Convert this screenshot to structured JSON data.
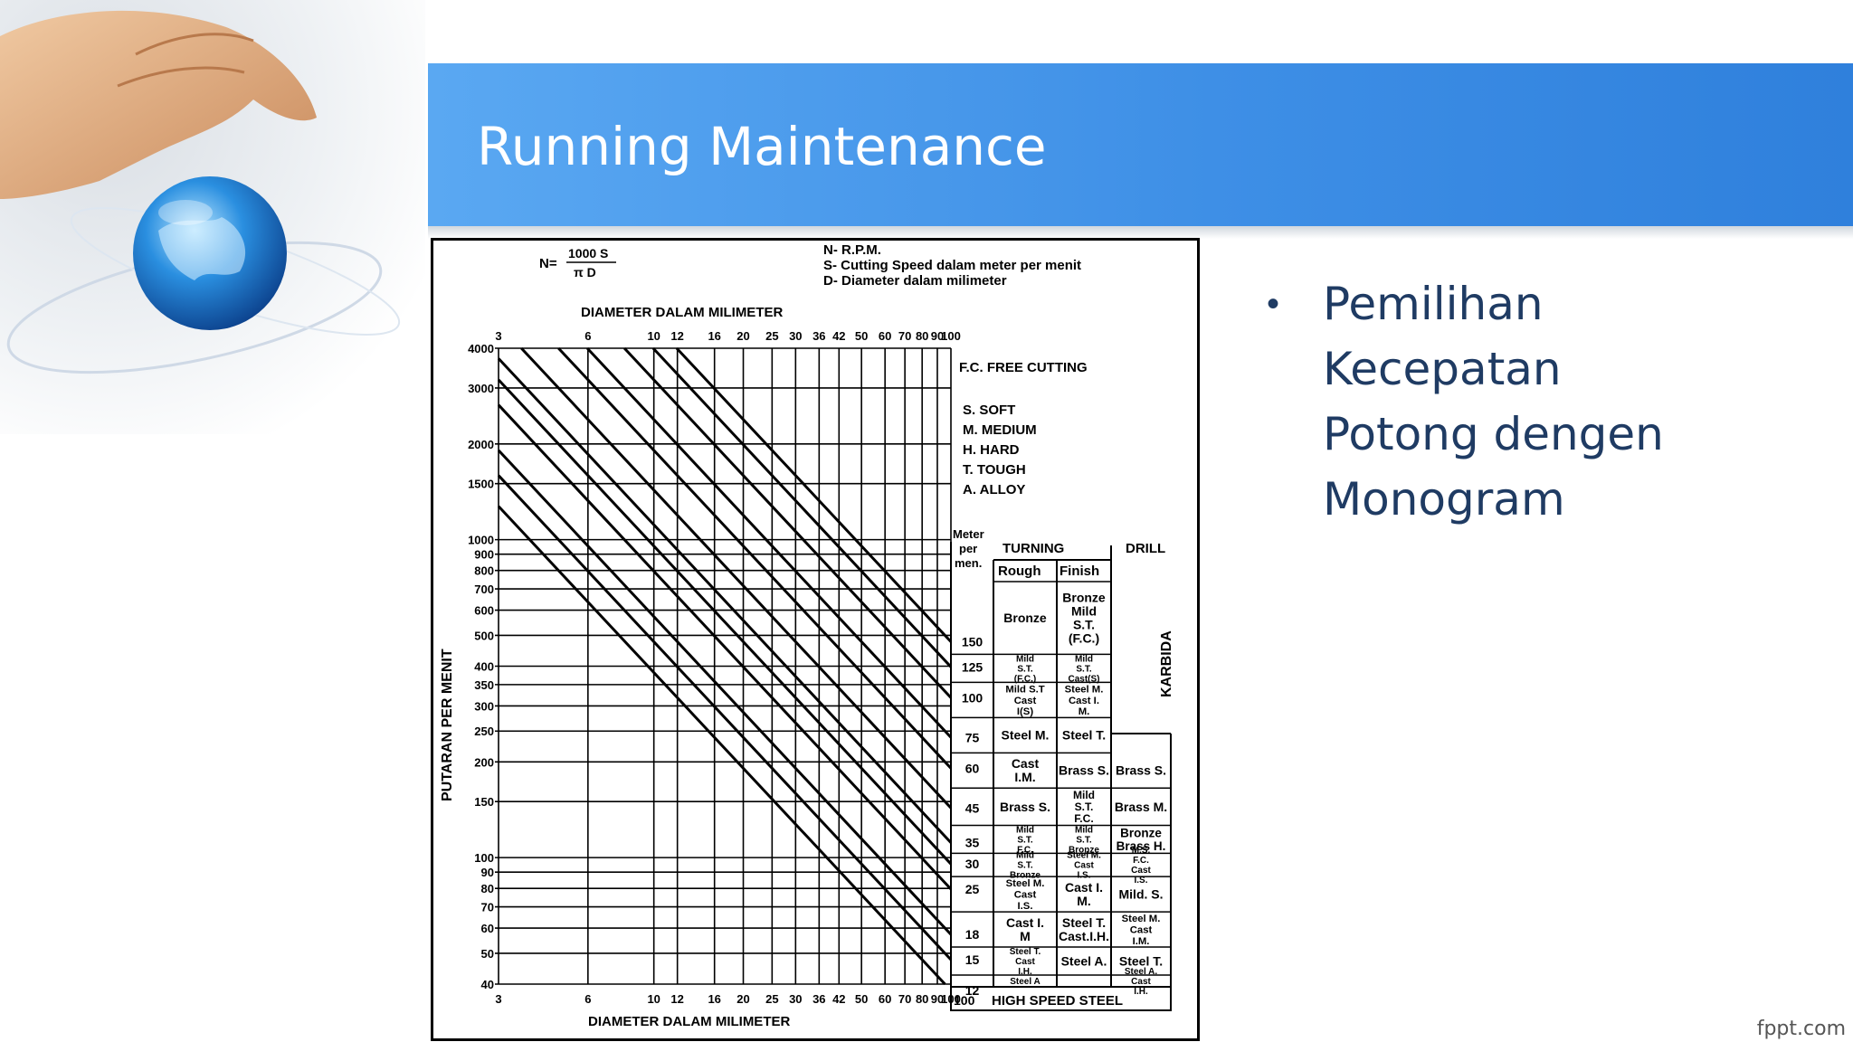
{
  "slide": {
    "title": "Running Maintenance",
    "bullets": [
      "Pemilihan Kecepatan Potong dengen Monogram"
    ],
    "watermark": "fppt.com",
    "colors": {
      "banner": "#3e8fe6",
      "bullet_text": "#1f3b63",
      "title_text": "#ffffff"
    },
    "decoration_icons": [
      "hand-icon",
      "globe-icon"
    ]
  },
  "nomogram": {
    "formula_lhs": "N=",
    "formula_num": "1000 S",
    "formula_den": "π D",
    "legend_top": [
      "N- R.P.M.",
      "S- Cutting Speed dalam meter per menit",
      "D- Diameter dalam milimeter"
    ],
    "diam_title": "DIAMETER DALAM MILIMETER",
    "diam_ticks": [
      3,
      6,
      10,
      12,
      16,
      20,
      25,
      30,
      36,
      42,
      50,
      60,
      70,
      80,
      90,
      100
    ],
    "rpm_title": "PUTARAN PER MENIT",
    "rpm_ticks": [
      4000,
      3000,
      2000,
      1500,
      1000,
      900,
      800,
      700,
      600,
      500,
      400,
      350,
      300,
      250,
      200,
      150,
      100,
      90,
      80,
      70,
      60,
      50,
      40
    ],
    "materials": [
      "F.C. FREE CUTTING",
      "S. SOFT",
      "M. MEDIUM",
      "H. HARD",
      "T. TOUGH",
      "A. ALLOY"
    ],
    "speed_header": [
      "Meter",
      "per",
      "men."
    ],
    "turning_label": "TURNING",
    "drill_label": "DRILL",
    "rough_label": "Rough",
    "finish_label": "Finish",
    "karbida_label": "KARBIDA",
    "hss_label": "HIGH SPEED STEEL",
    "hss_start": "100",
    "rows": [
      {
        "speed": "150",
        "rough": "Bronze",
        "finish": "Bronze Mild S.T. (F.C.)",
        "drill": ""
      },
      {
        "speed": "125",
        "rough": "Mild S.T. (F.C.)",
        "finish": "Mild S.T. Cast(S)",
        "drill": ""
      },
      {
        "speed": "100",
        "rough": "Mild S.T Cast I(S)",
        "finish": "Steel M. Cast I. M.",
        "drill": ""
      },
      {
        "speed": "75",
        "rough": "Steel M.",
        "finish": "Steel T.",
        "drill": ""
      },
      {
        "speed": "60",
        "rough": "Cast I.M.",
        "finish": "Brass S.",
        "drill": "Brass S."
      },
      {
        "speed": "45",
        "rough": "Brass S.",
        "finish": "Mild S.T. F.C.",
        "drill": "Brass M."
      },
      {
        "speed": "35",
        "rough": "Mild S.T. F.C.",
        "finish": "Mild S.T. Bronze",
        "drill": "Bronze Brass H."
      },
      {
        "speed": "30",
        "rough": "Mild S.T. Bronze",
        "finish": "Steel M. Cast I.S.",
        "drill": "M.S. F.C. Cast I.S."
      },
      {
        "speed": "25",
        "rough": "Steel M. Cast I.S.",
        "finish": "Cast I. M.",
        "drill": "Mild. S."
      },
      {
        "speed": "18",
        "rough": "Cast I. M",
        "finish": "Steel T. Cast.I.H.",
        "drill": "Steel M. Cast I.M."
      },
      {
        "speed": "15",
        "rough": "Steel T. Cast I.H.",
        "finish": "Steel A.",
        "drill": "Steel T."
      },
      {
        "speed": "12",
        "rough": "Steel A",
        "finish": "",
        "drill": "Steel A. Cast I.H."
      }
    ]
  }
}
